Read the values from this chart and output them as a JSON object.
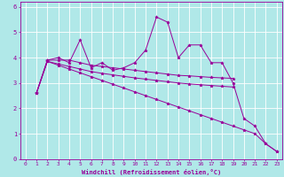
{
  "xlabel": "Windchill (Refroidissement éolien,°C)",
  "background_color": "#b0e8e8",
  "grid_color": "#c8e8e8",
  "line_color": "#990099",
  "xlim": [
    -0.5,
    23.5
  ],
  "ylim": [
    0,
    6.2
  ],
  "xticks": [
    0,
    1,
    2,
    3,
    4,
    5,
    6,
    7,
    8,
    9,
    10,
    11,
    12,
    13,
    14,
    15,
    16,
    17,
    18,
    19,
    20,
    21,
    22,
    23
  ],
  "yticks": [
    0,
    1,
    2,
    3,
    4,
    5,
    6
  ],
  "series": [
    {
      "x": [
        1,
        2,
        3,
        4,
        5,
        6,
        7,
        8,
        9,
        10,
        11,
        12,
        13,
        14,
        15,
        16,
        17,
        18,
        19,
        20,
        21,
        22,
        23
      ],
      "y": [
        2.6,
        3.9,
        4.0,
        3.8,
        4.7,
        3.6,
        3.8,
        3.5,
        3.6,
        3.8,
        4.3,
        5.6,
        5.4,
        4.0,
        4.5,
        4.5,
        3.8,
        3.8,
        3.0,
        1.6,
        1.3,
        0.6,
        0.3
      ]
    },
    {
      "x": [
        1,
        2,
        3,
        4,
        5,
        6,
        7,
        8,
        9,
        10,
        11,
        12,
        13,
        14,
        15,
        16,
        17,
        18,
        19
      ],
      "y": [
        2.6,
        3.9,
        3.9,
        3.9,
        3.8,
        3.7,
        3.65,
        3.6,
        3.55,
        3.5,
        3.45,
        3.4,
        3.35,
        3.3,
        3.28,
        3.25,
        3.22,
        3.2,
        3.18
      ]
    },
    {
      "x": [
        1,
        2,
        3,
        4,
        5,
        6,
        7,
        8,
        9,
        10,
        11,
        12,
        13,
        14,
        15,
        16,
        17,
        18,
        19
      ],
      "y": [
        2.6,
        3.85,
        3.75,
        3.65,
        3.55,
        3.45,
        3.38,
        3.32,
        3.26,
        3.2,
        3.15,
        3.1,
        3.05,
        3.0,
        2.96,
        2.93,
        2.9,
        2.87,
        2.84
      ]
    },
    {
      "x": [
        1,
        2,
        3,
        4,
        5,
        6,
        7,
        8,
        9,
        10,
        11,
        12,
        13,
        14,
        15,
        16,
        17,
        18,
        19,
        20,
        21,
        22,
        23
      ],
      "y": [
        2.6,
        3.85,
        3.7,
        3.55,
        3.4,
        3.25,
        3.1,
        2.95,
        2.8,
        2.65,
        2.5,
        2.35,
        2.2,
        2.05,
        1.9,
        1.75,
        1.6,
        1.45,
        1.3,
        1.15,
        1.0,
        0.6,
        0.3
      ]
    }
  ],
  "marker": "*",
  "markersize": 2.5,
  "linewidth": 0.7,
  "tick_fontsize": 4.5,
  "xlabel_fontsize": 5.0
}
